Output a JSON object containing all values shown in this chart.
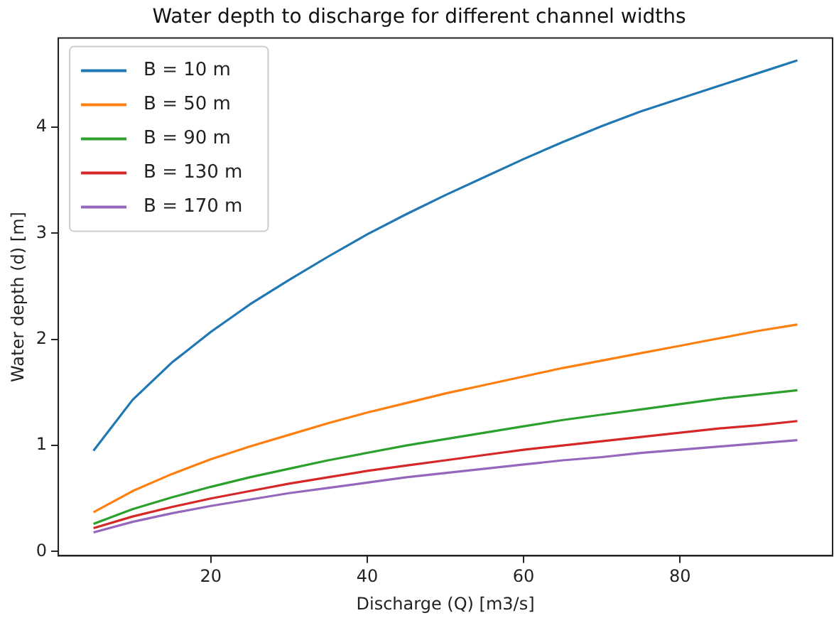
{
  "chart_data": {
    "type": "line",
    "title": "Water depth to discharge for different channel widths",
    "xlabel": "Discharge (Q) [m3/s]",
    "ylabel": "Water depth (d) [m]",
    "x": [
      5,
      10,
      15,
      20,
      25,
      30,
      35,
      40,
      45,
      50,
      55,
      60,
      65,
      70,
      75,
      80,
      85,
      90,
      95
    ],
    "series": [
      {
        "name": "B = 10 m",
        "color": "#1f77b4",
        "values": [
          0.95,
          1.43,
          1.78,
          2.07,
          2.33,
          2.56,
          2.78,
          2.99,
          3.18,
          3.36,
          3.53,
          3.7,
          3.86,
          4.01,
          4.15,
          4.27,
          4.39,
          4.51,
          4.63
        ]
      },
      {
        "name": "B = 50 m",
        "color": "#ff7f0e",
        "values": [
          0.37,
          0.57,
          0.73,
          0.87,
          0.99,
          1.1,
          1.21,
          1.31,
          1.4,
          1.49,
          1.57,
          1.65,
          1.73,
          1.8,
          1.87,
          1.94,
          2.01,
          2.08,
          2.14
        ]
      },
      {
        "name": "B = 90 m",
        "color": "#2ca02c",
        "values": [
          0.26,
          0.4,
          0.51,
          0.61,
          0.7,
          0.78,
          0.86,
          0.93,
          1.0,
          1.06,
          1.12,
          1.18,
          1.24,
          1.29,
          1.34,
          1.39,
          1.44,
          1.48,
          1.52
        ]
      },
      {
        "name": "B = 130 m",
        "color": "#d62728",
        "values": [
          0.22,
          0.33,
          0.42,
          0.5,
          0.57,
          0.64,
          0.7,
          0.76,
          0.81,
          0.86,
          0.91,
          0.96,
          1.0,
          1.04,
          1.08,
          1.12,
          1.16,
          1.19,
          1.23
        ]
      },
      {
        "name": "B = 170 m",
        "color": "#9467bd",
        "values": [
          0.18,
          0.28,
          0.36,
          0.43,
          0.49,
          0.55,
          0.6,
          0.65,
          0.7,
          0.74,
          0.78,
          0.82,
          0.86,
          0.89,
          0.93,
          0.96,
          0.99,
          1.02,
          1.05
        ]
      }
    ],
    "xlim": [
      0.5,
      99.5
    ],
    "xticks": [
      20,
      40,
      60,
      80
    ],
    "ylim": [
      -0.04,
      4.84
    ],
    "yticks": [
      0,
      1,
      2,
      3,
      4
    ],
    "grid": false,
    "legend": "top left",
    "marker": "none",
    "line_style": "solid"
  }
}
